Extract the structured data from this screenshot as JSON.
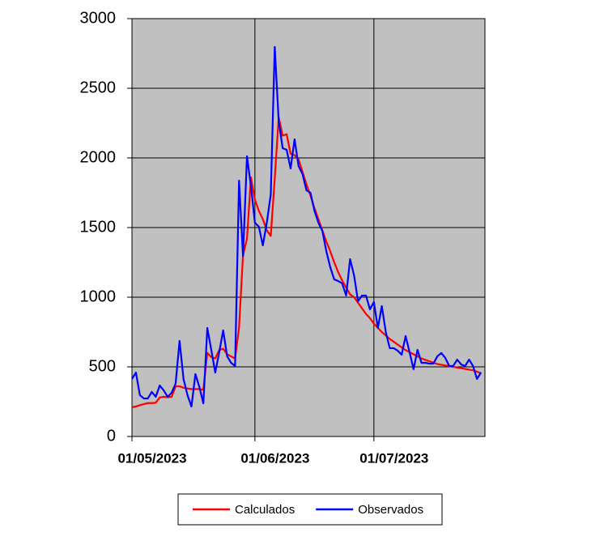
{
  "chart_data": {
    "type": "line",
    "x": [
      "01/05/2023",
      "02/05/2023",
      "03/05/2023",
      "04/05/2023",
      "05/05/2023",
      "06/05/2023",
      "07/05/2023",
      "08/05/2023",
      "09/05/2023",
      "10/05/2023",
      "11/05/2023",
      "12/05/2023",
      "13/05/2023",
      "14/05/2023",
      "15/05/2023",
      "16/05/2023",
      "17/05/2023",
      "18/05/2023",
      "19/05/2023",
      "20/05/2023",
      "21/05/2023",
      "22/05/2023",
      "23/05/2023",
      "24/05/2023",
      "25/05/2023",
      "26/05/2023",
      "27/05/2023",
      "28/05/2023",
      "29/05/2023",
      "30/05/2023",
      "31/05/2023",
      "01/06/2023",
      "02/06/2023",
      "03/06/2023",
      "04/06/2023",
      "05/06/2023",
      "06/06/2023",
      "07/06/2023",
      "08/06/2023",
      "09/06/2023",
      "10/06/2023",
      "11/06/2023",
      "12/06/2023",
      "13/06/2023",
      "14/06/2023",
      "15/06/2023",
      "16/06/2023",
      "17/06/2023",
      "18/06/2023",
      "19/06/2023",
      "20/06/2023",
      "21/06/2023",
      "22/06/2023",
      "23/06/2023",
      "24/06/2023",
      "25/06/2023",
      "26/06/2023",
      "27/06/2023",
      "28/06/2023",
      "29/06/2023",
      "30/06/2023",
      "01/07/2023",
      "02/07/2023",
      "03/07/2023",
      "04/07/2023",
      "05/07/2023",
      "06/07/2023",
      "07/07/2023",
      "08/07/2023",
      "09/07/2023",
      "10/07/2023",
      "11/07/2023",
      "12/07/2023",
      "13/07/2023",
      "14/07/2023",
      "15/07/2023",
      "16/07/2023",
      "17/07/2023",
      "18/07/2023",
      "19/07/2023",
      "20/07/2023",
      "21/07/2023",
      "22/07/2023",
      "23/07/2023",
      "24/07/2023",
      "25/07/2023",
      "26/07/2023",
      "27/07/2023",
      "28/07/2023"
    ],
    "series": [
      {
        "name": "Calculados",
        "color": "#ff0000",
        "values": [
          210,
          215,
          225,
          232,
          240,
          240,
          242,
          280,
          285,
          282,
          285,
          360,
          360,
          350,
          345,
          340,
          340,
          340,
          335,
          600,
          570,
          560,
          620,
          630,
          590,
          575,
          560,
          780,
          1300,
          1420,
          1860,
          1700,
          1620,
          1560,
          1480,
          1440,
          1850,
          2290,
          2160,
          2170,
          2030,
          2020,
          1990,
          1900,
          1810,
          1730,
          1640,
          1560,
          1480,
          1400,
          1330,
          1250,
          1180,
          1120,
          1070,
          1020,
          1000,
          960,
          920,
          880,
          850,
          810,
          780,
          750,
          725,
          700,
          680,
          660,
          640,
          620,
          605,
          590,
          575,
          560,
          550,
          540,
          530,
          520,
          515,
          510,
          505,
          500,
          495,
          490,
          485,
          480,
          475,
          465,
          455
        ]
      },
      {
        "name": "Observados",
        "color": "#0000ff",
        "values": [
          413,
          459,
          297,
          273,
          273,
          320,
          285,
          366,
          331,
          285,
          314,
          378,
          686,
          413,
          297,
          215,
          448,
          355,
          238,
          779,
          622,
          459,
          605,
          762,
          576,
          529,
          506,
          1837,
          1297,
          2012,
          1797,
          1535,
          1506,
          1372,
          1535,
          1738,
          2797,
          2262,
          2070,
          2058,
          1924,
          2134,
          1942,
          1884,
          1767,
          1750,
          1622,
          1535,
          1477,
          1331,
          1215,
          1128,
          1116,
          1099,
          1012,
          1273,
          1157,
          971,
          1012,
          1012,
          913,
          965,
          779,
          936,
          750,
          634,
          634,
          616,
          587,
          721,
          605,
          483,
          622,
          529,
          529,
          523,
          523,
          576,
          599,
          564,
          506,
          506,
          552,
          517,
          506,
          552,
          506,
          413,
          459
        ]
      }
    ],
    "xlim": [
      "01/05/2023",
      "29/07/2023"
    ],
    "xticks": [
      "01/05/2023",
      "01/06/2023",
      "01/07/2023"
    ],
    "ylim": [
      0,
      3000
    ],
    "yticks": [
      0,
      500,
      1000,
      1500,
      2000,
      2500,
      3000
    ],
    "grid": true,
    "legend": "bottom"
  }
}
